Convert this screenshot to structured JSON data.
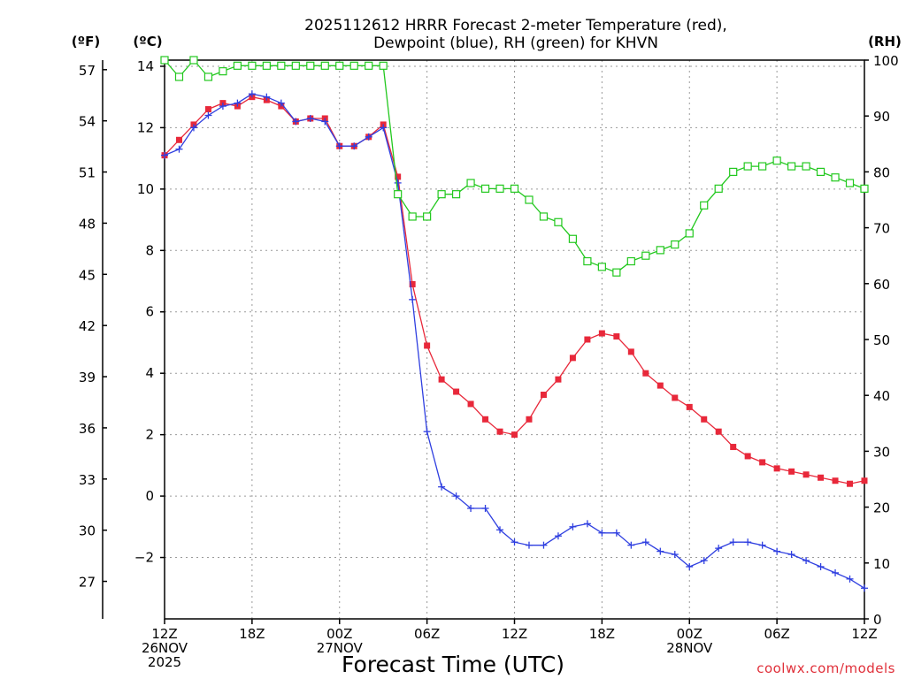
{
  "chart_data": {
    "type": "line",
    "title_line1": "2025112612 HRRR Forecast 2-meter Temperature (red),",
    "title_line2": "Dewpoint (blue), RH (green) for KHVN",
    "xlabel": "Forecast Time (UTC)",
    "credit": "coolwx.com/models",
    "units": {
      "fahrenheit": "(ºF)",
      "celsius": "(ºC)",
      "rh": "(RH)"
    },
    "x_range": [
      0,
      48
    ],
    "x_ticks": [
      {
        "x": 0,
        "line1": "12Z",
        "line2": "26NOV",
        "line3": "2025"
      },
      {
        "x": 6,
        "line1": "18Z",
        "line2": "",
        "line3": ""
      },
      {
        "x": 12,
        "line1": "00Z",
        "line2": "27NOV",
        "line3": ""
      },
      {
        "x": 18,
        "line1": "06Z",
        "line2": "",
        "line3": ""
      },
      {
        "x": 24,
        "line1": "12Z",
        "line2": "",
        "line3": ""
      },
      {
        "x": 30,
        "line1": "18Z",
        "line2": "",
        "line3": ""
      },
      {
        "x": 36,
        "line1": "00Z",
        "line2": "28NOV",
        "line3": ""
      },
      {
        "x": 42,
        "line1": "06Z",
        "line2": "",
        "line3": ""
      },
      {
        "x": 48,
        "line1": "12Z",
        "line2": "",
        "line3": ""
      }
    ],
    "celsius_axis": {
      "range": [
        -4,
        14.2
      ],
      "ticks": [
        14,
        12,
        10,
        8,
        6,
        4,
        2,
        0,
        -2
      ],
      "tick_labels": [
        "14",
        "12",
        "10",
        "8",
        "6",
        "4",
        "2",
        "0",
        "−2"
      ]
    },
    "fahrenheit_axis": {
      "ticks": [
        57,
        54,
        51,
        48,
        45,
        42,
        39,
        36,
        33,
        30,
        27
      ],
      "tick_labels": [
        "57",
        "54",
        "51",
        "48",
        "45",
        "42",
        "39",
        "36",
        "33",
        "30",
        "27"
      ]
    },
    "rh_axis": {
      "range": [
        0,
        100
      ],
      "ticks": [
        100,
        90,
        80,
        70,
        60,
        50,
        40,
        30,
        20,
        10,
        0
      ],
      "tick_labels": [
        "100",
        "90",
        "80",
        "70",
        "60",
        "50",
        "40",
        "30",
        "20",
        "10",
        "0"
      ]
    },
    "series": [
      {
        "name": "Temperature",
        "unit": "C",
        "color": "#e8283a",
        "marker": "filled-square",
        "x": [
          0,
          1,
          2,
          3,
          4,
          5,
          6,
          7,
          8,
          9,
          10,
          11,
          12,
          13,
          14,
          15,
          16,
          17,
          18,
          19,
          20,
          21,
          22,
          23,
          24,
          25,
          26,
          27,
          28,
          29,
          30,
          31,
          32,
          33,
          34,
          35,
          36,
          37,
          38,
          39,
          40,
          41,
          42,
          43,
          44,
          45,
          46,
          47,
          48
        ],
        "values": [
          11.1,
          11.6,
          12.1,
          12.6,
          12.8,
          12.7,
          13.0,
          12.9,
          12.7,
          12.2,
          12.3,
          12.3,
          11.4,
          11.4,
          11.7,
          12.1,
          10.4,
          6.9,
          4.9,
          3.8,
          3.4,
          3.0,
          2.5,
          2.1,
          2.0,
          2.5,
          3.3,
          3.8,
          4.5,
          5.1,
          5.3,
          5.2,
          4.7,
          4.0,
          3.6,
          3.2,
          2.9,
          2.5,
          2.1,
          1.6,
          1.3,
          1.1,
          0.9,
          0.8,
          0.7,
          0.6,
          0.5,
          0.4,
          0.5
        ]
      },
      {
        "name": "Dewpoint",
        "unit": "C",
        "color": "#2f3fe0",
        "marker": "plus",
        "x": [
          0,
          1,
          2,
          3,
          4,
          5,
          6,
          7,
          8,
          9,
          10,
          11,
          12,
          13,
          14,
          15,
          16,
          17,
          18,
          19,
          20,
          21,
          22,
          23,
          24,
          25,
          26,
          27,
          28,
          29,
          30,
          31,
          32,
          33,
          34,
          35,
          36,
          37,
          38,
          39,
          40,
          41,
          42,
          43,
          44,
          45,
          46,
          47,
          48
        ],
        "values": [
          11.1,
          11.3,
          12.0,
          12.4,
          12.7,
          12.8,
          13.1,
          13.0,
          12.8,
          12.2,
          12.3,
          12.2,
          11.4,
          11.4,
          11.7,
          12.0,
          10.2,
          6.4,
          2.1,
          0.3,
          0.0,
          -0.4,
          -0.4,
          -1.1,
          -1.5,
          -1.6,
          -1.6,
          -1.3,
          -1.0,
          -0.9,
          -1.2,
          -1.2,
          -1.6,
          -1.5,
          -1.8,
          -1.9,
          -2.3,
          -2.1,
          -1.7,
          -1.5,
          -1.5,
          -1.6,
          -1.8,
          -1.9,
          -2.1,
          -2.3,
          -2.5,
          -2.7,
          -3.0
        ]
      },
      {
        "name": "Relative Humidity",
        "unit": "%",
        "color": "#22c81e",
        "marker": "open-square",
        "x": [
          0,
          1,
          2,
          3,
          4,
          5,
          6,
          7,
          8,
          9,
          10,
          11,
          12,
          13,
          14,
          15,
          16,
          17,
          18,
          19,
          20,
          21,
          22,
          23,
          24,
          25,
          26,
          27,
          28,
          29,
          30,
          31,
          32,
          33,
          34,
          35,
          36,
          37,
          38,
          39,
          40,
          41,
          42,
          43,
          44,
          45,
          46,
          47,
          48
        ],
        "values": [
          100,
          97,
          100,
          97,
          98,
          99,
          99,
          99,
          99,
          99,
          99,
          99,
          99,
          99,
          99,
          99,
          76,
          72,
          72,
          76,
          76,
          78,
          77,
          77,
          77,
          75,
          72,
          71,
          68,
          64,
          63,
          62,
          64,
          65,
          66,
          67,
          69,
          74,
          77,
          80,
          81,
          81,
          82,
          81,
          81,
          80,
          79,
          78,
          77
        ]
      }
    ]
  }
}
